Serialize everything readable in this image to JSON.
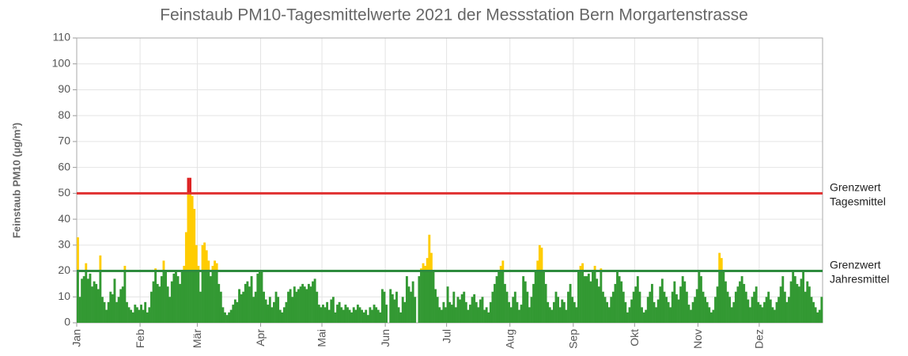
{
  "chart_data": {
    "type": "bar",
    "title": "Feinstaub PM10-Tagesmittelwerte 2021 der Messstation Bern Morgartenstrasse",
    "y_label": "Feinstaub PM10 (µg/m³)",
    "ylim": [
      0,
      110
    ],
    "yticks": [
      0,
      10,
      20,
      30,
      40,
      50,
      60,
      70,
      80,
      90,
      100,
      110
    ],
    "xlim": [
      0,
      365
    ],
    "xticks": [
      {
        "value": 0,
        "label": "Jan"
      },
      {
        "value": 31,
        "label": "Feb"
      },
      {
        "value": 59,
        "label": "Mär"
      },
      {
        "value": 90,
        "label": "Apr"
      },
      {
        "value": 120,
        "label": "Mai"
      },
      {
        "value": 151,
        "label": "Jun"
      },
      {
        "value": 181,
        "label": "Jul"
      },
      {
        "value": 212,
        "label": "Aug"
      },
      {
        "value": 243,
        "label": "Sep"
      },
      {
        "value": 273,
        "label": "Okt"
      },
      {
        "value": 304,
        "label": "Nov"
      },
      {
        "value": 334,
        "label": "Dez"
      }
    ],
    "grid": true,
    "colors": {
      "low": "#339933",
      "mid": "#ffcc00",
      "high": "#dd2222"
    },
    "reference_lines": [
      {
        "label": [
          "Grenzwert",
          "Tagesmittel"
        ],
        "value": 50,
        "color": "#e03030"
      },
      {
        "label": [
          "Grenzwert",
          "Jahresmittel"
        ],
        "value": 20,
        "color": "#2e8b3e"
      }
    ],
    "values": [
      33,
      10,
      17,
      18,
      23,
      17,
      19,
      14,
      16,
      15,
      13,
      26,
      10,
      8,
      5,
      8,
      12,
      11,
      17,
      8,
      10,
      13,
      14,
      22,
      8,
      6,
      5,
      4,
      7,
      6,
      5,
      7,
      5,
      8,
      4,
      6,
      12,
      16,
      21,
      15,
      14,
      18,
      24,
      20,
      14,
      10,
      16,
      19,
      20,
      18,
      15,
      20,
      22,
      35,
      56,
      56,
      49,
      44,
      30,
      22,
      12,
      30,
      31,
      28,
      24,
      18,
      22,
      24,
      23,
      15,
      12,
      6,
      4,
      3,
      4,
      5,
      7,
      9,
      8,
      13,
      11,
      12,
      15,
      16,
      14,
      18,
      10,
      12,
      19,
      20,
      20,
      12,
      9,
      7,
      10,
      6,
      8,
      12,
      10,
      5,
      4,
      6,
      8,
      12,
      13,
      10,
      14,
      12,
      13,
      14,
      15,
      14,
      13,
      15,
      14,
      16,
      17,
      12,
      7,
      6,
      7,
      6,
      8,
      5,
      9,
      10,
      4,
      7,
      8,
      6,
      5,
      7,
      6,
      5,
      4,
      6,
      5,
      7,
      6,
      5,
      4,
      5,
      3,
      6,
      5,
      7,
      6,
      5,
      4,
      13,
      12,
      7,
      0,
      13,
      11,
      9,
      12,
      6,
      4,
      10,
      8,
      18,
      14,
      12,
      16,
      10,
      0,
      18,
      21,
      23,
      22,
      25,
      34,
      27,
      20,
      13,
      10,
      6,
      5,
      8,
      6,
      14,
      8,
      7,
      12,
      6,
      10,
      9,
      11,
      12,
      8,
      5,
      7,
      10,
      11,
      8,
      6,
      9,
      10,
      5,
      6,
      4,
      8,
      12,
      15,
      18,
      20,
      22,
      24,
      15,
      12,
      8,
      6,
      10,
      12,
      8,
      5,
      7,
      18,
      16,
      12,
      6,
      10,
      15,
      20,
      24,
      30,
      29,
      20,
      15,
      8,
      6,
      5,
      8,
      12,
      10,
      6,
      9,
      8,
      5,
      12,
      15,
      10,
      8,
      6,
      20,
      22,
      23,
      18,
      18,
      19,
      16,
      20,
      22,
      17,
      14,
      21,
      12,
      10,
      8,
      6,
      10,
      12,
      15,
      20,
      18,
      16,
      12,
      8,
      4,
      6,
      9,
      12,
      14,
      18,
      12,
      6,
      4,
      5,
      10,
      12,
      15,
      8,
      6,
      9,
      14,
      17,
      12,
      10,
      8,
      6,
      12,
      16,
      11,
      9,
      14,
      18,
      16,
      12,
      7,
      5,
      8,
      10,
      13,
      20,
      18,
      12,
      10,
      8,
      6,
      4,
      5,
      10,
      14,
      27,
      25,
      20,
      16,
      12,
      10,
      6,
      8,
      12,
      14,
      16,
      18,
      15,
      12,
      9,
      6,
      10,
      12,
      14,
      8,
      7,
      6,
      8,
      10,
      12,
      9,
      6,
      5,
      8,
      10,
      14,
      18,
      12,
      8,
      10,
      16,
      20,
      18,
      15,
      14,
      17,
      20,
      12,
      16,
      14,
      10,
      8,
      6,
      4,
      5,
      10
    ]
  }
}
